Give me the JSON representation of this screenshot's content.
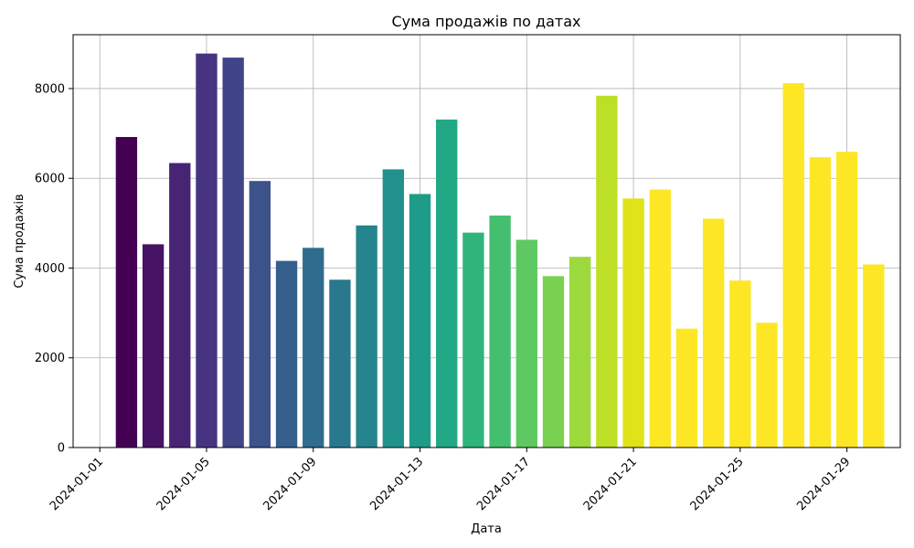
{
  "chart_data": {
    "type": "bar",
    "title": "Сума продажів по датах",
    "xlabel": "Дата",
    "ylabel": "Сума продажів",
    "ylim": [
      0,
      9200
    ],
    "xlim": [
      "2023-12-31",
      "2024-01-31"
    ],
    "y_ticks": [
      0,
      2000,
      4000,
      6000,
      8000
    ],
    "x_ticks": [
      "2024-01-01",
      "2024-01-05",
      "2024-01-09",
      "2024-01-13",
      "2024-01-17",
      "2024-01-21",
      "2024-01-25",
      "2024-01-29"
    ],
    "x_tick_rotation": 45,
    "grid": true,
    "legend": "none",
    "colormap": "viridis",
    "categories": [
      "2024-01-02",
      "2024-01-03",
      "2024-01-04",
      "2024-01-05",
      "2024-01-06",
      "2024-01-07",
      "2024-01-08",
      "2024-01-09",
      "2024-01-10",
      "2024-01-11",
      "2024-01-12",
      "2024-01-13",
      "2024-01-14",
      "2024-01-15",
      "2024-01-16",
      "2024-01-17",
      "2024-01-18",
      "2024-01-19",
      "2024-01-20",
      "2024-01-21",
      "2024-01-22",
      "2024-01-23",
      "2024-01-24",
      "2024-01-25",
      "2024-01-26",
      "2024-01-27",
      "2024-01-28",
      "2024-01-29",
      "2024-01-30"
    ],
    "values": [
      6920,
      4530,
      6340,
      8780,
      8690,
      5940,
      4160,
      4450,
      3740,
      4950,
      6200,
      5650,
      7310,
      4790,
      5170,
      4630,
      3820,
      4250,
      7840,
      5550,
      5750,
      2650,
      5100,
      3720,
      2780,
      8120,
      6470,
      6590,
      4080
    ],
    "colors": [
      "#440154",
      "#471365",
      "#482475",
      "#463480",
      "#414487",
      "#3b528b",
      "#355f8d",
      "#2f6c8e",
      "#2a788e",
      "#25848e",
      "#21918c",
      "#1e9c89",
      "#22a884",
      "#2fb47c",
      "#44bf70",
      "#5ec962",
      "#7ad151",
      "#9bd93c",
      "#bddf26",
      "#dfe318",
      "#fde725",
      "#fde725",
      "#fde725",
      "#fde725",
      "#fde725",
      "#fde725",
      "#fde725",
      "#fde725",
      "#fde725"
    ]
  }
}
